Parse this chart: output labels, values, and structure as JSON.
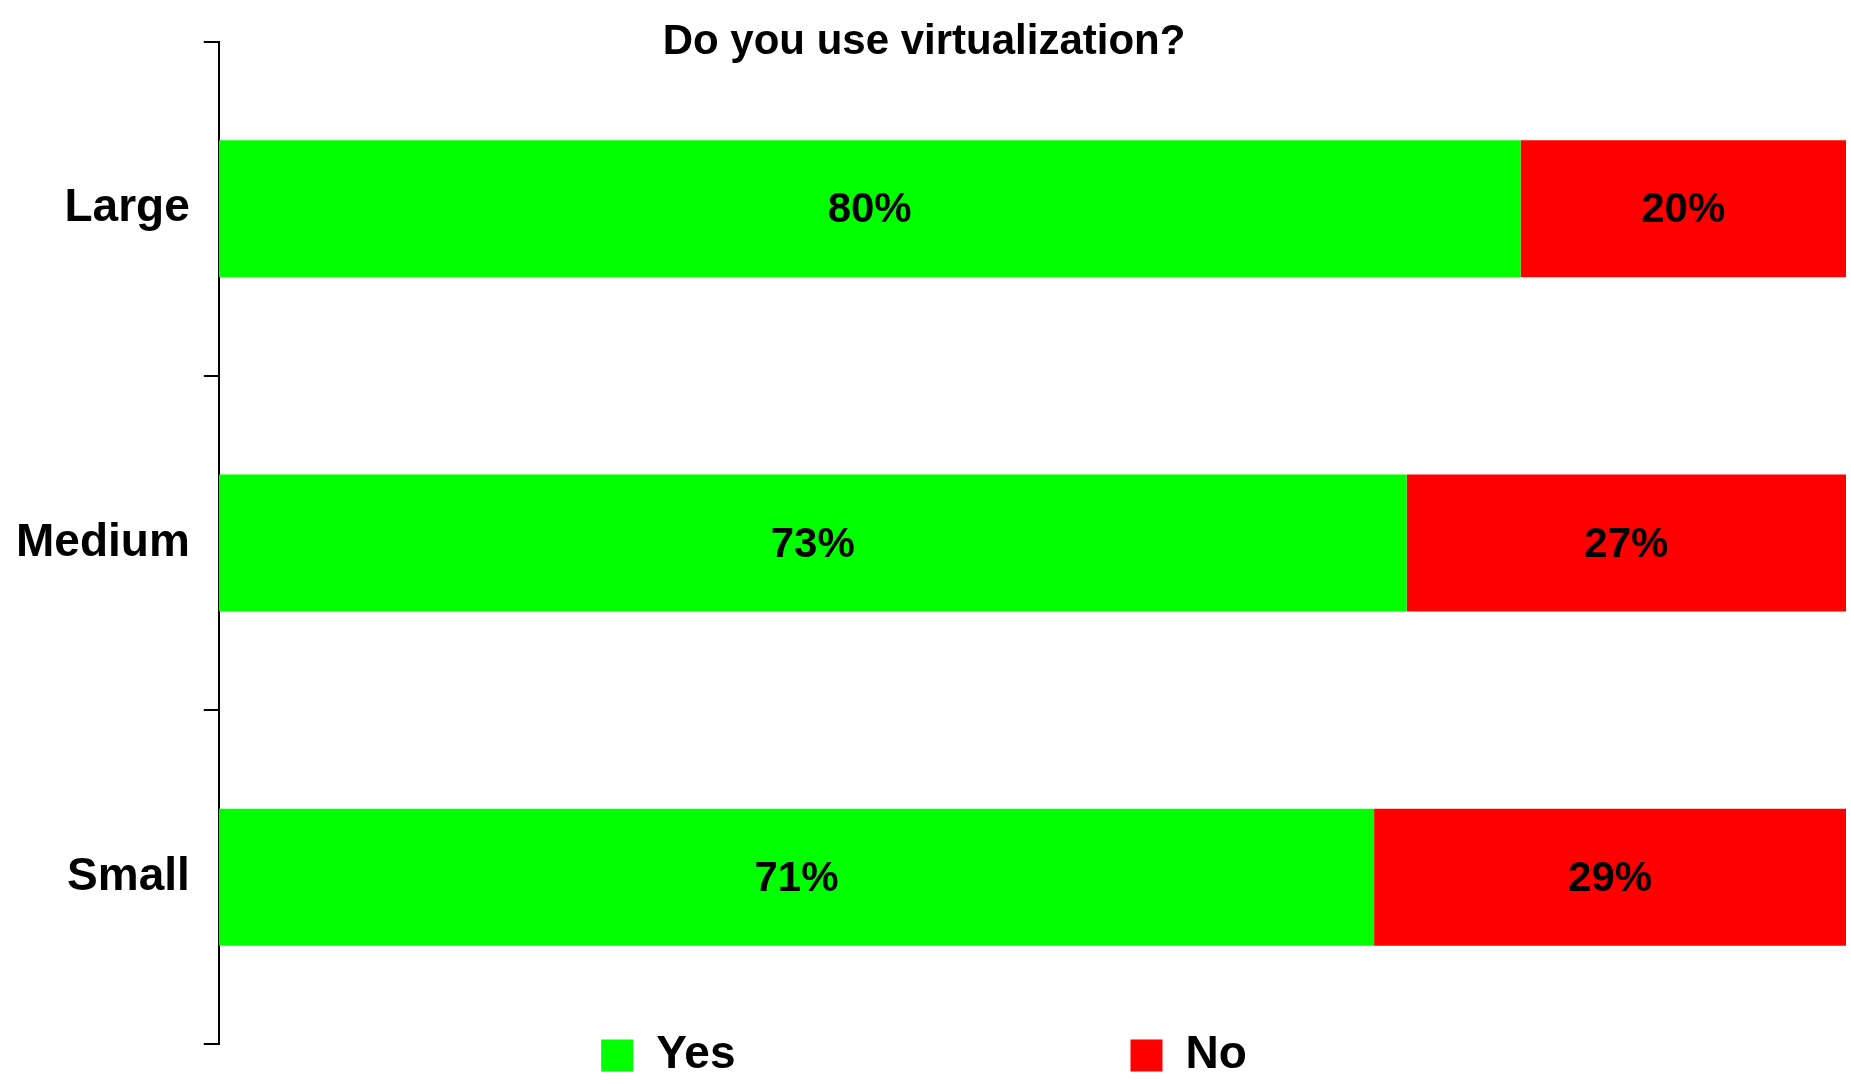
{
  "chart_data": {
    "type": "bar",
    "title": "Do you use virtualization?",
    "orientation": "horizontal",
    "stacked": true,
    "categories": [
      "Large",
      "Medium",
      "Small"
    ],
    "series": [
      {
        "name": "Yes",
        "color": "#00ff00",
        "values": [
          80,
          73,
          71
        ],
        "value_labels": [
          "80%",
          "73%",
          "71%"
        ]
      },
      {
        "name": "No",
        "color": "#ff0000",
        "values": [
          20,
          27,
          29
        ],
        "value_labels": [
          "20%",
          "27%",
          "29%"
        ]
      }
    ],
    "xlim": [
      0,
      100
    ],
    "tick_labels": "y",
    "legend": "bottom"
  }
}
